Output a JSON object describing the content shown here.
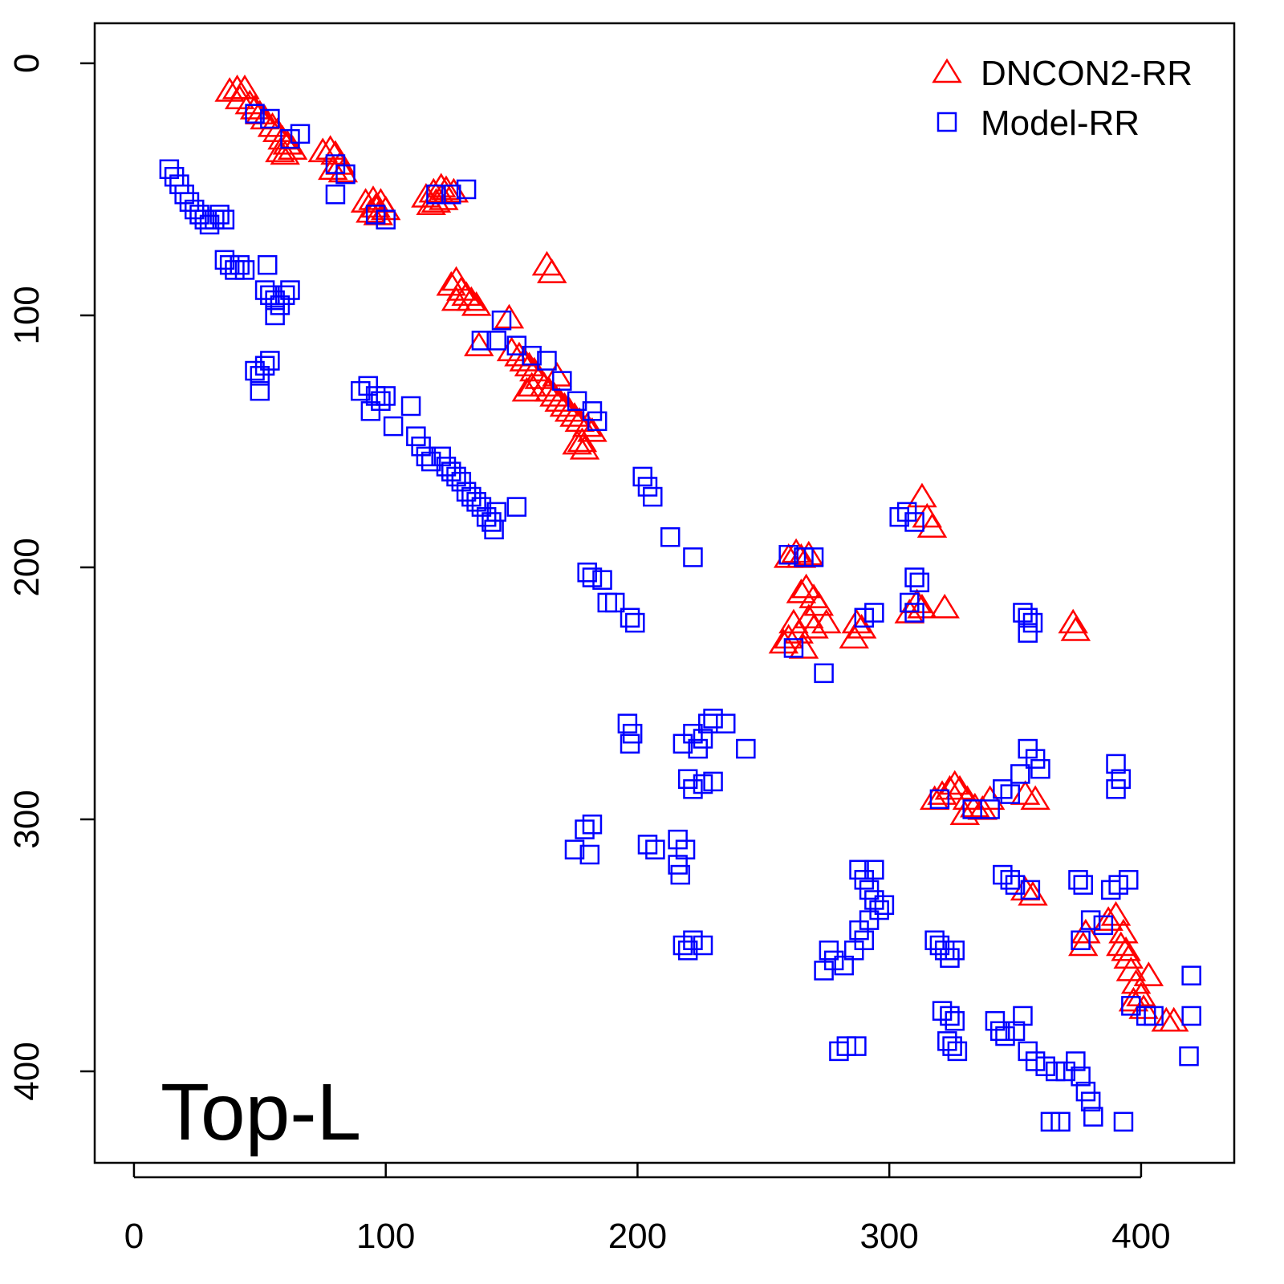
{
  "chart_data": {
    "type": "scatter",
    "annotation": "Top-L",
    "xlim": [
      -15.6,
      437
    ],
    "xticks": [
      0,
      100,
      200,
      300,
      400
    ],
    "ylim": [
      436.3,
      -15.9
    ],
    "yticks": [
      0,
      100,
      200,
      300,
      400
    ],
    "legend": "top-right",
    "series": [
      {
        "name": "DNCON2-RR",
        "color": "#ff0000",
        "marker": "triangle",
        "x": [
          38,
          41,
          44,
          42,
          46,
          48,
          50,
          52,
          55,
          57,
          59,
          61,
          63,
          60,
          58,
          75,
          78,
          80,
          82,
          79,
          83,
          92,
          95,
          98,
          94,
          97,
          100,
          96,
          116,
          119,
          122,
          124,
          127,
          120,
          118,
          123,
          164,
          166,
          126,
          128,
          130,
          132,
          134,
          136,
          128,
          137,
          149,
          150,
          153,
          155,
          157,
          159,
          161,
          163,
          165,
          167,
          169,
          171,
          173,
          175,
          177,
          180,
          182,
          168,
          158,
          156,
          178,
          179,
          176,
          313,
          315,
          317,
          311,
          313,
          308,
          322,
          260,
          263,
          265,
          268,
          265,
          267,
          270,
          272,
          268,
          262,
          260,
          258,
          264,
          270,
          275,
          266,
          287,
          289,
          286,
          373,
          374,
          318,
          321,
          324,
          326,
          328,
          331,
          334,
          337,
          330,
          340,
          354,
          358,
          354,
          357,
          378,
          377,
          387,
          390,
          393,
          392,
          395,
          396,
          398,
          400,
          397,
          401,
          403,
          410,
          413,
          394
        ],
        "y": [
          11,
          10,
          10,
          14,
          16,
          18,
          20,
          22,
          25,
          27,
          30,
          32,
          34,
          36,
          35,
          35,
          34,
          36,
          40,
          42,
          43,
          55,
          54,
          55,
          59,
          60,
          58,
          57,
          53,
          51,
          49,
          50,
          51,
          55,
          56,
          54,
          80,
          83,
          88,
          86,
          90,
          92,
          94,
          96,
          94,
          112,
          101,
          114,
          116,
          118,
          120,
          122,
          125,
          128,
          130,
          132,
          134,
          136,
          138,
          140,
          142,
          144,
          146,
          124,
          128,
          130,
          150,
          153,
          151,
          172,
          180,
          184,
          214,
          216,
          218,
          216,
          196,
          194,
          196,
          195,
          210,
          208,
          212,
          215,
          220,
          222,
          228,
          230,
          226,
          224,
          222,
          232,
          222,
          224,
          228,
          222,
          225,
          292,
          290,
          288,
          286,
          288,
          292,
          295,
          296,
          298,
          292,
          290,
          292,
          328,
          330,
          345,
          350,
          340,
          338,
          345,
          350,
          355,
          360,
          365,
          370,
          372,
          375,
          362,
          380,
          380,
          352
        ]
      },
      {
        "name": "Model-RR",
        "color": "#0000ff",
        "marker": "square",
        "x": [
          14,
          16,
          18,
          20,
          22,
          24,
          26,
          28,
          30,
          32,
          34,
          36,
          36,
          38,
          40,
          42,
          44,
          53,
          52,
          54,
          56,
          58,
          60,
          62,
          56,
          48,
          50,
          52,
          54,
          50,
          90,
          93,
          96,
          98,
          94,
          100,
          103,
          110,
          112,
          114,
          116,
          118,
          122,
          124,
          126,
          128,
          130,
          132,
          134,
          136,
          138,
          140,
          142,
          144,
          152,
          143,
          202,
          204,
          206,
          213,
          222,
          180,
          182,
          186,
          188,
          191,
          197,
          199,
          196,
          198,
          197,
          218,
          222,
          224,
          226,
          228,
          230,
          235,
          243,
          220,
          222,
          226,
          230,
          175,
          179,
          182,
          181,
          204,
          207,
          216,
          219,
          216,
          217,
          218,
          220,
          222,
          226,
          304,
          307,
          310,
          310,
          312,
          308,
          310,
          260,
          266,
          270,
          290,
          294,
          274,
          262,
          353,
          355,
          357,
          355,
          352,
          355,
          358,
          360,
          348,
          345,
          333,
          340,
          320,
          390,
          392,
          390,
          345,
          348,
          350,
          356,
          375,
          377,
          388,
          391,
          395,
          288,
          290,
          292,
          294,
          296,
          298,
          294,
          288,
          290,
          292,
          286,
          276,
          278,
          274,
          282,
          318,
          320,
          322,
          324,
          326,
          321,
          324,
          326,
          323,
          325,
          327,
          283,
          287,
          280,
          342,
          344,
          346,
          350,
          353,
          355,
          358,
          362,
          366,
          370,
          374,
          376,
          378,
          380,
          381,
          364,
          368,
          393,
          396,
          402,
          405,
          420,
          420,
          419,
          376,
          380,
          385,
          48,
          54,
          62,
          66,
          80,
          84,
          80,
          96,
          100,
          120,
          126,
          132,
          146,
          144,
          152,
          158,
          164,
          170,
          176,
          182,
          184,
          138
        ],
        "y": [
          42,
          45,
          48,
          52,
          55,
          58,
          60,
          62,
          64,
          62,
          60,
          62,
          78,
          80,
          82,
          80,
          82,
          80,
          90,
          92,
          94,
          96,
          92,
          90,
          100,
          122,
          124,
          120,
          118,
          130,
          130,
          128,
          132,
          134,
          138,
          132,
          144,
          136,
          148,
          152,
          156,
          158,
          156,
          160,
          162,
          164,
          166,
          170,
          172,
          174,
          176,
          180,
          182,
          178,
          176,
          185,
          164,
          168,
          172,
          188,
          196,
          202,
          204,
          205,
          214,
          214,
          220,
          222,
          262,
          266,
          270,
          270,
          266,
          272,
          268,
          262,
          260,
          262,
          272,
          284,
          288,
          286,
          285,
          312,
          304,
          302,
          314,
          310,
          312,
          308,
          312,
          318,
          322,
          350,
          352,
          348,
          350,
          180,
          178,
          182,
          204,
          206,
          214,
          218,
          195,
          196,
          196,
          220,
          218,
          242,
          232,
          218,
          220,
          222,
          226,
          282,
          272,
          276,
          280,
          290,
          288,
          296,
          296,
          292,
          278,
          284,
          288,
          322,
          324,
          326,
          328,
          324,
          326,
          328,
          326,
          324,
          320,
          324,
          328,
          332,
          336,
          334,
          320,
          344,
          348,
          340,
          352,
          352,
          356,
          360,
          358,
          348,
          350,
          352,
          355,
          352,
          376,
          378,
          380,
          388,
          390,
          392,
          390,
          390,
          392,
          380,
          384,
          386,
          384,
          378,
          392,
          396,
          398,
          400,
          400,
          396,
          402,
          408,
          412,
          418,
          420,
          420,
          420,
          374,
          378,
          378,
          362,
          378,
          394,
          348,
          340,
          342,
          20,
          22,
          30,
          28,
          40,
          44,
          52,
          60,
          62,
          52,
          52,
          50,
          102,
          110,
          112,
          116,
          118,
          126,
          134,
          138,
          142,
          110
        ]
      }
    ]
  }
}
